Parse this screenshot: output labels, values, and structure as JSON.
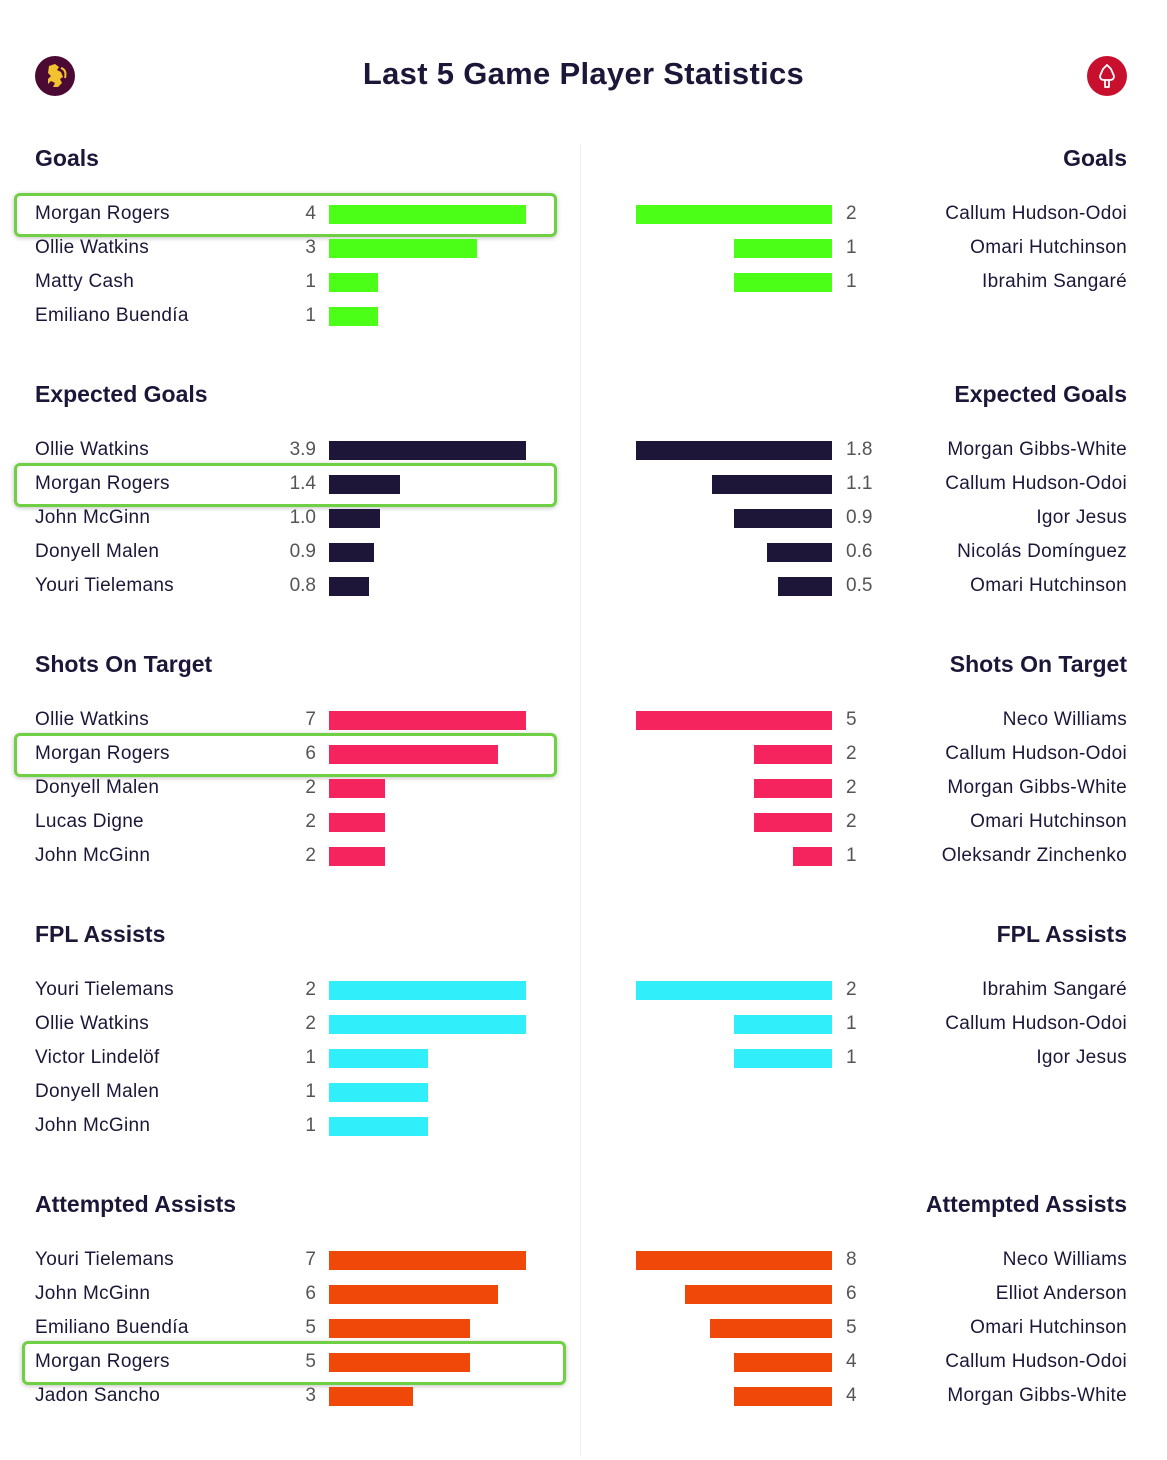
{
  "title": "Last 5 Game Player Statistics",
  "home_logo": {
    "icon": "aston-villa-lion-crest-icon",
    "color": "#4a0a33"
  },
  "away_logo": {
    "icon": "nottingham-forest-tree-crest-icon",
    "color": "#c8102e"
  },
  "highlight_player": "Morgan Rogers",
  "highlight_color": "#6fd043",
  "chart_data": [
    {
      "type": "bar",
      "title": "Goals",
      "color": "#4cff17",
      "home": {
        "players": [
          "Morgan Rogers",
          "Ollie Watkins",
          "Matty Cash",
          "Emiliano Buendía"
        ],
        "values": [
          "4",
          "3",
          "1",
          "1"
        ]
      },
      "away": {
        "players": [
          "Callum Hudson-Odoi",
          "Omari Hutchinson",
          "Ibrahim Sangaré"
        ],
        "values": [
          "2",
          "1",
          "1"
        ]
      }
    },
    {
      "type": "bar",
      "title": "Expected Goals",
      "color": "#1e1638",
      "home": {
        "players": [
          "Ollie Watkins",
          "Morgan Rogers",
          "John McGinn",
          "Donyell Malen",
          "Youri Tielemans"
        ],
        "values": [
          "3.9",
          "1.4",
          "1.0",
          "0.9",
          "0.8"
        ]
      },
      "away": {
        "players": [
          "Morgan Gibbs-White",
          "Callum Hudson-Odoi",
          "Igor Jesus",
          "Nicolás Domínguez",
          "Omari Hutchinson"
        ],
        "values": [
          "1.8",
          "1.1",
          "0.9",
          "0.6",
          "0.5"
        ]
      }
    },
    {
      "type": "bar",
      "title": "Shots On Target",
      "color": "#f5245e",
      "home": {
        "players": [
          "Ollie Watkins",
          "Morgan Rogers",
          "Donyell Malen",
          "Lucas Digne",
          "John McGinn"
        ],
        "values": [
          "7",
          "6",
          "2",
          "2",
          "2"
        ]
      },
      "away": {
        "players": [
          "Neco Williams",
          "Callum Hudson-Odoi",
          "Morgan Gibbs-White",
          "Omari Hutchinson",
          "Oleksandr Zinchenko"
        ],
        "values": [
          "5",
          "2",
          "2",
          "2",
          "1"
        ]
      }
    },
    {
      "type": "bar",
      "title": "FPL Assists",
      "color": "#30effb",
      "home": {
        "players": [
          "Youri Tielemans",
          "Ollie Watkins",
          "Victor Lindelöf",
          "Donyell Malen",
          "John McGinn"
        ],
        "values": [
          "2",
          "2",
          "1",
          "1",
          "1"
        ]
      },
      "away": {
        "players": [
          "Ibrahim Sangaré",
          "Callum Hudson-Odoi",
          "Igor Jesus"
        ],
        "values": [
          "2",
          "1",
          "1"
        ]
      }
    },
    {
      "type": "bar",
      "title": "Attempted Assists",
      "color": "#f04808",
      "home": {
        "players": [
          "Youri Tielemans",
          "John McGinn",
          "Emiliano Buendía",
          "Morgan Rogers",
          "Jadon Sancho"
        ],
        "values": [
          "7",
          "6",
          "5",
          "5",
          "3"
        ]
      },
      "away": {
        "players": [
          "Neco Williams",
          "Elliot Anderson",
          "Omari Hutchinson",
          "Callum Hudson-Odoi",
          "Morgan Gibbs-White"
        ],
        "values": [
          "8",
          "6",
          "5",
          "4",
          "4"
        ]
      }
    }
  ]
}
